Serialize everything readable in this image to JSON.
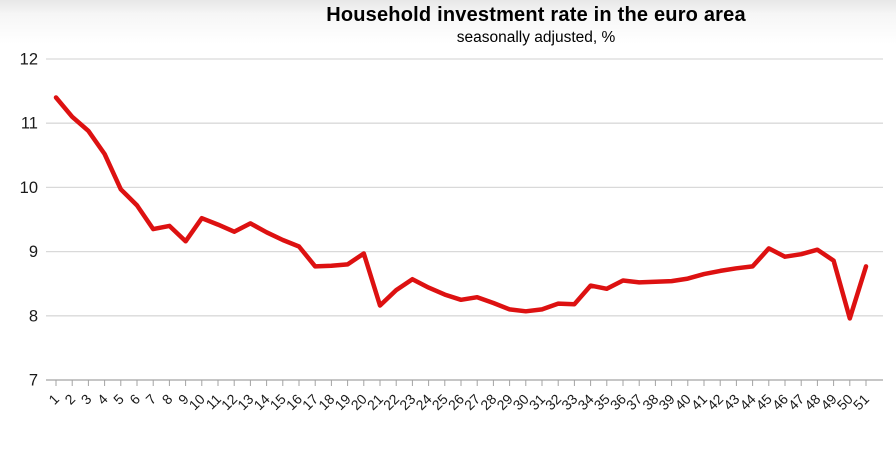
{
  "chart_data": {
    "type": "line",
    "title": "Household investment rate in the euro area",
    "subtitle": "seasonally adjusted, %",
    "xlabel": "",
    "ylabel": "",
    "ylim": [
      7,
      12
    ],
    "yticks": [
      7,
      8,
      9,
      10,
      11,
      12
    ],
    "grid": "horizontal",
    "legend": "none",
    "categories": [
      1,
      2,
      3,
      4,
      5,
      6,
      7,
      8,
      9,
      10,
      11,
      12,
      13,
      14,
      15,
      16,
      17,
      18,
      19,
      20,
      21,
      22,
      23,
      24,
      25,
      26,
      27,
      28,
      29,
      30,
      31,
      32,
      33,
      34,
      35,
      36,
      37,
      38,
      39,
      40,
      41,
      42,
      43,
      44,
      45,
      46,
      47,
      48,
      49,
      50,
      51
    ],
    "series": [
      {
        "name": "Household investment rate",
        "values": [
          11.4,
          11.1,
          10.88,
          10.52,
          9.97,
          9.72,
          9.35,
          9.4,
          9.16,
          9.52,
          9.42,
          9.31,
          9.44,
          9.3,
          9.18,
          9.08,
          8.77,
          8.78,
          8.8,
          8.97,
          8.16,
          8.4,
          8.57,
          8.44,
          8.33,
          8.25,
          8.29,
          8.2,
          8.1,
          8.07,
          8.1,
          8.19,
          8.18,
          8.47,
          8.42,
          8.55,
          8.52,
          8.53,
          8.54,
          8.58,
          8.65,
          8.7,
          8.74,
          8.77,
          9.05,
          8.92,
          8.96,
          9.03,
          8.86,
          7.96,
          8.77
        ]
      }
    ],
    "colors": {
      "line": "#dd1111",
      "grid": "#d9d9d9",
      "axis": "#a3a3a3",
      "text": "#1a1a1a"
    }
  }
}
